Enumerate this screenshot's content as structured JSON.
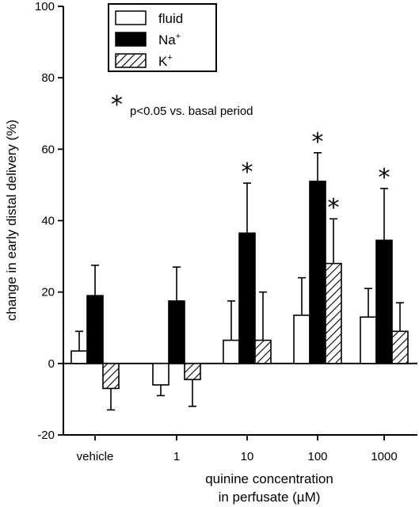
{
  "chart_data": {
    "type": "bar",
    "categories": [
      "vehicle",
      "1",
      "10",
      "100",
      "1000"
    ],
    "series": [
      {
        "name": "fluid",
        "values": [
          3.5,
          -6,
          6.5,
          13.5,
          13
        ],
        "errors": [
          5.5,
          3,
          11,
          10.5,
          8
        ],
        "significant": [
          false,
          false,
          false,
          false,
          false
        ],
        "fill": "#ffffff",
        "pattern": "none"
      },
      {
        "name": "Na",
        "sup": "+",
        "values": [
          19,
          17.5,
          36.5,
          51,
          34.5
        ],
        "errors": [
          8.5,
          9.5,
          14,
          8,
          14.5
        ],
        "significant": [
          false,
          false,
          true,
          true,
          true
        ],
        "fill": "#000000",
        "pattern": "solid"
      },
      {
        "name": "K",
        "sup": "+",
        "values": [
          -7,
          -4.5,
          6.5,
          28,
          9
        ],
        "errors": [
          6,
          7.5,
          13.5,
          12.5,
          8
        ],
        "significant": [
          false,
          false,
          false,
          true,
          false
        ],
        "fill": "#ffffff",
        "pattern": "hatch"
      }
    ],
    "ylabel": "change in early distal delivery (%)",
    "xlabel_line1": "quinine concentration",
    "xlabel_line2": "in perfusate (µM)",
    "ylim": [
      -20,
      100
    ],
    "yticks": [
      -20,
      0,
      20,
      40,
      60,
      80,
      100
    ],
    "significance_symbol": "*",
    "annotation": "p<0.05 vs. basal period",
    "legend_position": "top-left",
    "grid": false
  }
}
